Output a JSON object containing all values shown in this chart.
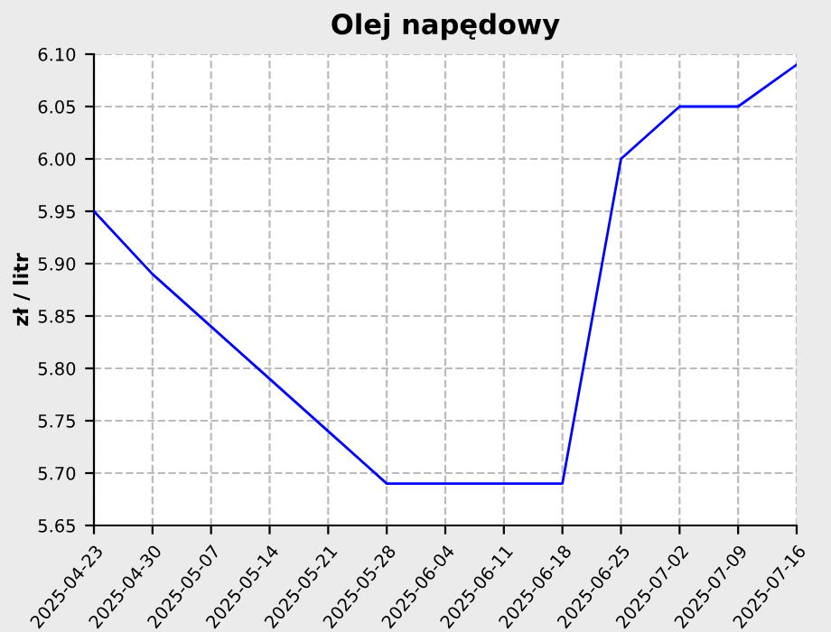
{
  "chart_data": {
    "type": "line",
    "title": "Olej napędowy",
    "ylabel": "zł / litr",
    "categories": [
      "2025-04-23",
      "2025-04-30",
      "2025-05-07",
      "2025-05-14",
      "2025-05-21",
      "2025-05-28",
      "2025-06-04",
      "2025-06-11",
      "2025-06-18",
      "2025-06-25",
      "2025-07-02",
      "2025-07-09",
      "2025-07-16"
    ],
    "series": [
      {
        "color": "#0000ff",
        "values": [
          5.95,
          5.89,
          5.84,
          5.79,
          5.74,
          5.69,
          5.69,
          5.69,
          5.69,
          6.0,
          6.05,
          6.05,
          6.09
        ]
      }
    ],
    "ylim": [
      5.65,
      6.1
    ],
    "yticks": [
      {
        "value": 5.65,
        "label": "5.65"
      },
      {
        "value": 5.7,
        "label": "5.70"
      },
      {
        "value": 5.75,
        "label": "5.75"
      },
      {
        "value": 5.8,
        "label": "5.80"
      },
      {
        "value": 5.85,
        "label": "5.85"
      },
      {
        "value": 5.9,
        "label": "5.90"
      },
      {
        "value": 5.95,
        "label": "5.95"
      },
      {
        "value": 6.0,
        "label": "6.00"
      },
      {
        "value": 6.05,
        "label": "6.05"
      },
      {
        "value": 6.1,
        "label": "6.10"
      }
    ],
    "grid": true,
    "line_style": "solid"
  }
}
